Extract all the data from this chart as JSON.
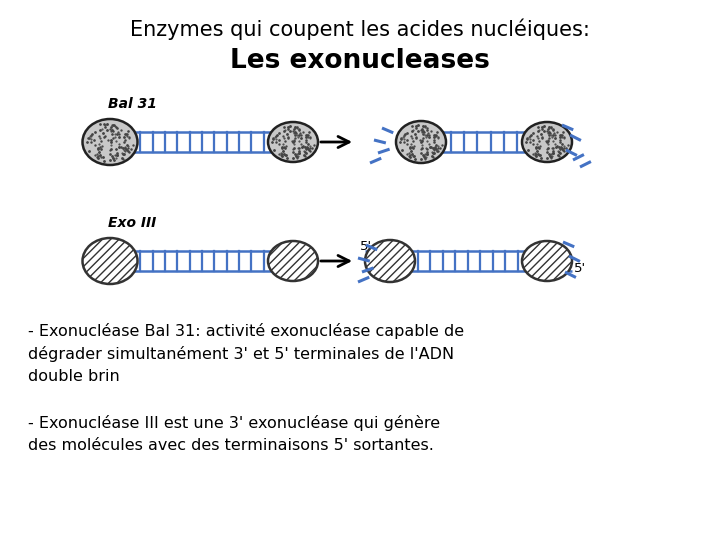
{
  "title_line1": "Enzymes qui coupent les acides nucléiques:",
  "title_line2": "Les exonucleases",
  "label_bal31": "Bal 31",
  "label_exo3": "Exo III",
  "text1": "- Exonucléase Bal 31: activité exonucléase capable de\ndégrader simultanément 3' et 5' terminales de l'ADN\ndouble brin",
  "text2": "- Exonucléase III est une 3' exonucléase qui génère\ndes molécules avec des terminaisons 5' sortantes.",
  "bg_color": "#ffffff",
  "title1_fontsize": 15,
  "title2_fontsize": 19,
  "label_fontsize": 10,
  "body_fontsize": 11.5,
  "dna_color": "#4472C4",
  "arrow_color": "#000000"
}
